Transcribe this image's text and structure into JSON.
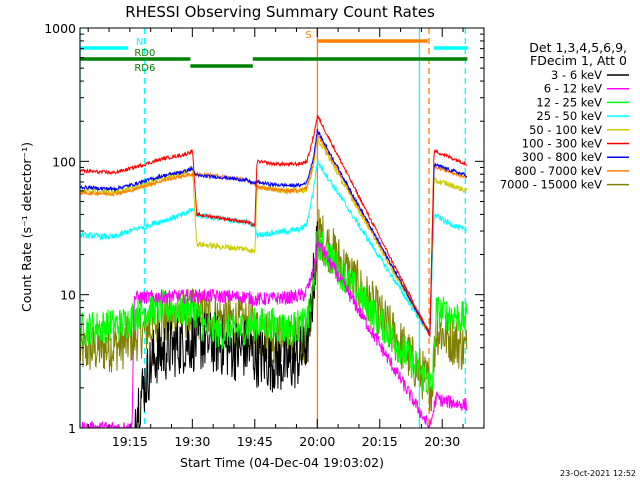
{
  "chart_data": {
    "type": "line",
    "title": "RHESSI Observing Summary Count Rates",
    "xlabel": "Start Time (04-Dec-04 19:03:02)",
    "ylabel": "Count Rate (s⁻¹ detector⁻¹)",
    "x_unit": "minutes after 19:03:02",
    "xlim": [
      0,
      97
    ],
    "ylim": [
      1,
      1000
    ],
    "yscale": "log",
    "x_ticks": [
      {
        "label": "19:15",
        "x": 11.97
      },
      {
        "label": "19:30",
        "x": 26.97
      },
      {
        "label": "19:45",
        "x": 41.97
      },
      {
        "label": "20:00",
        "x": 56.97
      },
      {
        "label": "20:15",
        "x": 71.97
      },
      {
        "label": "20:30",
        "x": 86.97
      }
    ],
    "y_ticks": [
      {
        "label": "1",
        "y": 1
      },
      {
        "label": "10",
        "y": 10
      },
      {
        "label": "100",
        "y": 100
      },
      {
        "label": "1000",
        "y": 1000
      }
    ],
    "legend": {
      "position": "top-right",
      "header": [
        "Det 1,3,4,5,6,9,",
        "FDecim 1, Att 0"
      ]
    },
    "series": [
      {
        "name": "3 - 6 keV",
        "color": "#000000",
        "noise": 0.55,
        "gaps": [
          [
            0,
            13.2
          ]
        ],
        "x": [
          13.2,
          15,
          17,
          18,
          22,
          26,
          30,
          34,
          38,
          40,
          42,
          46,
          50,
          53,
          54.5,
          55.5,
          56,
          57
        ],
        "y": [
          1.3,
          1.9,
          3.0,
          3.5,
          4.0,
          4.5,
          4.5,
          4.2,
          3.8,
          4.0,
          3.5,
          3.2,
          3.0,
          3.5,
          4.5,
          7,
          12,
          25
        ]
      },
      {
        "name": "6 - 12 keV",
        "color": "#ff00ff",
        "noise": 0.12,
        "gaps": [],
        "x": [
          0,
          12.5,
          13,
          20,
          30,
          40,
          42,
          50,
          54,
          55.5,
          56.5,
          57,
          84,
          85.5,
          87,
          92,
          93
        ],
        "y": [
          1,
          1,
          9.5,
          9.7,
          9.8,
          9.6,
          9.2,
          9.5,
          10,
          13,
          18,
          25,
          1,
          1.7,
          1.6,
          1.5,
          1.5
        ]
      },
      {
        "name": "12 - 25 keV",
        "color": "#00ff00",
        "noise": 0.3,
        "gaps": [],
        "x": [
          0,
          6,
          10,
          12,
          14,
          20,
          28,
          30,
          34,
          38,
          42,
          46,
          50,
          54,
          55,
          56,
          57,
          84.5,
          85.5,
          90,
          93
        ],
        "y": [
          5.5,
          5.8,
          6.0,
          6.5,
          7.5,
          8.0,
          7.5,
          5.5,
          5.2,
          5.5,
          6.0,
          6.0,
          5.5,
          6.0,
          7,
          12,
          25,
          2,
          7.5,
          7.0,
          6.5
        ]
      },
      {
        "name": "25 - 50 keV",
        "color": "#00ffff",
        "noise": 0.05,
        "gaps": [],
        "x": [
          0,
          8,
          12,
          16,
          20,
          25,
          27,
          28,
          32,
          36,
          40,
          42,
          42.5,
          46,
          50,
          53,
          54.5,
          56,
          57,
          84,
          85,
          88,
          93
        ],
        "y": [
          28,
          27,
          30,
          33,
          36,
          40,
          44,
          40,
          38,
          36,
          35,
          33,
          28,
          29,
          30,
          31,
          34,
          60,
          100,
          5,
          40,
          35,
          30
        ]
      },
      {
        "name": "50 - 100 keV",
        "color": "#cccc00",
        "noise": 0.05,
        "gaps": [],
        "x": [
          0,
          8,
          12,
          16,
          20,
          25,
          27,
          28,
          33,
          40,
          42,
          42.5,
          46,
          50,
          53,
          54.5,
          56,
          57,
          84,
          85,
          88,
          93
        ],
        "y": [
          60,
          58,
          62,
          68,
          75,
          82,
          90,
          24,
          23,
          22,
          21,
          65,
          62,
          60,
          60,
          62,
          90,
          150,
          5,
          72,
          68,
          60
        ]
      },
      {
        "name": "100 - 300 keV",
        "color": "#ff0000",
        "noise": 0.03,
        "gaps": [],
        "x": [
          0,
          8,
          12,
          16,
          20,
          25,
          27,
          28,
          33,
          40,
          42,
          42.5,
          46,
          50,
          53,
          54.5,
          56,
          57,
          84,
          85,
          88,
          93
        ],
        "y": [
          85,
          82,
          88,
          96,
          105,
          112,
          120,
          40,
          38,
          35,
          33,
          100,
          96,
          95,
          96,
          100,
          150,
          220,
          5,
          120,
          110,
          95
        ]
      },
      {
        "name": "300 - 800 keV",
        "color": "#0000ff",
        "noise": 0.03,
        "gaps": [],
        "x": [
          0,
          8,
          12,
          16,
          20,
          25,
          27,
          28,
          34,
          40,
          42,
          42.5,
          46,
          50,
          53,
          54.5,
          56,
          57,
          84,
          85,
          88,
          93
        ],
        "y": [
          64,
          62,
          66,
          72,
          78,
          84,
          88,
          78,
          76,
          72,
          68,
          70,
          67,
          66,
          66,
          70,
          105,
          170,
          5,
          95,
          88,
          78
        ]
      },
      {
        "name": "800 - 7000 keV",
        "color": "#ff8000",
        "noise": 0.03,
        "gaps": [],
        "x": [
          0,
          8,
          12,
          16,
          20,
          25,
          27,
          28,
          34,
          40,
          42,
          42.5,
          46,
          50,
          53,
          54.5,
          56,
          57,
          84,
          85,
          88,
          93
        ],
        "y": [
          58,
          57,
          60,
          66,
          72,
          78,
          80,
          80,
          77,
          72,
          68,
          64,
          62,
          60,
          61,
          64,
          95,
          160,
          5,
          92,
          85,
          75
        ]
      },
      {
        "name": "7000 - 15000 keV",
        "color": "#808000",
        "noise": 0.45,
        "gaps": [],
        "x": [
          0,
          6,
          10,
          14,
          20,
          26,
          30,
          36,
          40,
          44,
          50,
          54,
          55.5,
          56.5,
          57,
          84.5,
          85.5,
          90,
          93
        ],
        "y": [
          3.8,
          4.0,
          4.2,
          5.0,
          6.5,
          7.2,
          7.0,
          6.5,
          6.0,
          5.0,
          4.5,
          4.5,
          7,
          15,
          30,
          2,
          5.5,
          4.5,
          3.8
        ]
      }
    ],
    "attenuator_bars": [
      {
        "label": "N",
        "color": "#00ffff",
        "segments": [
          [
            0,
            11.5
          ],
          [
            85,
            93
          ]
        ],
        "level": "upper"
      },
      {
        "label": "S",
        "color": "#ff8000",
        "segments": [
          [
            57,
            83.5
          ]
        ],
        "level": "top"
      },
      {
        "label": "RD0",
        "color": "#008000",
        "segments": [
          [
            0,
            26.5
          ],
          [
            41.5,
            93
          ]
        ],
        "level": "middle"
      },
      {
        "label": "RD6",
        "color": "#008000",
        "segments": [
          [
            26.5,
            41.5
          ]
        ],
        "level": "lower"
      }
    ],
    "vertical_markers": [
      {
        "x": 0,
        "color": "#00ffff",
        "style": "solid"
      },
      {
        "x": 15.5,
        "color": "#00ffff",
        "style": "dashed"
      },
      {
        "x": 57,
        "color": "#ff8000",
        "style": "solid"
      },
      {
        "x": 81.5,
        "color": "#00ffff",
        "style": "solid"
      },
      {
        "x": 83.8,
        "color": "#ff8000",
        "style": "dashed"
      },
      {
        "x": 92.5,
        "color": "#00ffff",
        "style": "dashed"
      }
    ],
    "footer_date": "23-Oct-2021 12:52"
  }
}
